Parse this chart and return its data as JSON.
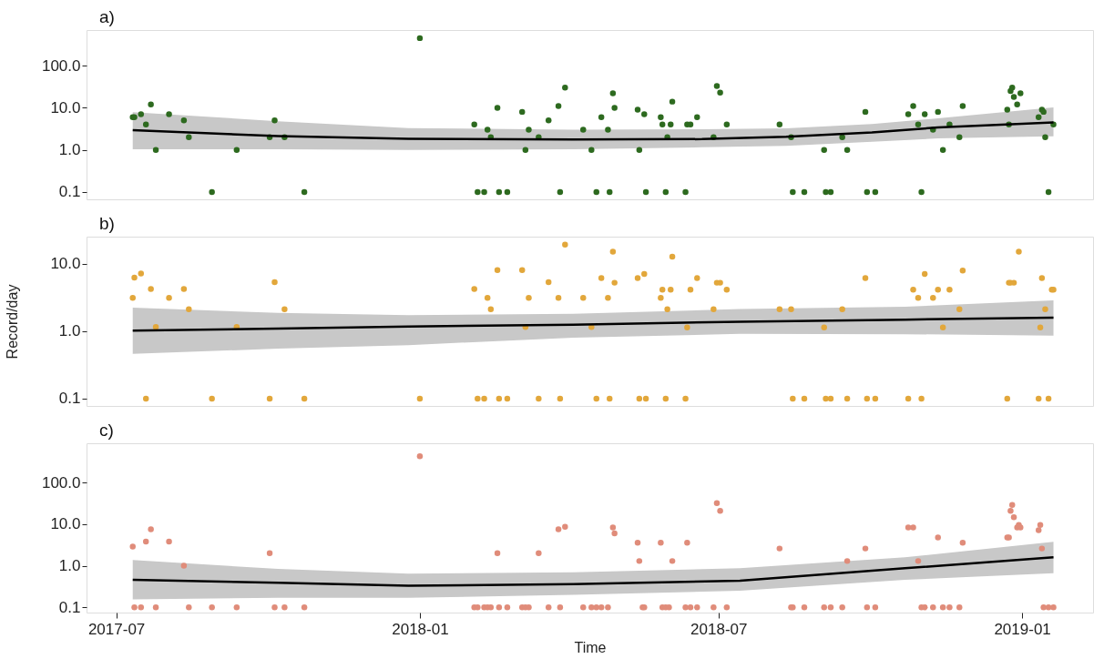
{
  "chart_data": [
    {
      "type": "scatter",
      "title": "a)",
      "xlim": [
        "2017-06-13",
        "2019-02-13"
      ],
      "ylim": [
        0.067,
        700
      ],
      "log": "y",
      "tick_labels": "y",
      "grid": false,
      "legend": false,
      "yticks": [
        {
          "value": 0.1,
          "label": "0.1"
        },
        {
          "value": 1,
          "label": "1.0"
        },
        {
          "value": 10,
          "label": "10.0"
        },
        {
          "value": 100,
          "label": "100.0"
        }
      ],
      "series": [
        {
          "color": "#2d6a1f",
          "x": [
            "2017-07-11",
            "2017-07-12",
            "2017-07-16",
            "2017-07-19",
            "2017-07-22",
            "2017-07-25",
            "2017-08-02",
            "2017-08-11",
            "2017-08-14",
            "2017-08-28",
            "2017-09-12",
            "2017-10-02",
            "2017-10-05",
            "2017-10-11",
            "2017-10-23",
            "2018-01-01",
            "2018-02-03",
            "2018-02-05",
            "2018-02-09",
            "2018-02-11",
            "2018-02-13",
            "2018-02-17",
            "2018-02-18",
            "2018-02-23",
            "2018-03-04",
            "2018-03-06",
            "2018-03-08",
            "2018-03-14",
            "2018-03-20",
            "2018-03-26",
            "2018-03-27",
            "2018-03-30",
            "2018-04-10",
            "2018-04-15",
            "2018-04-18",
            "2018-04-21",
            "2018-04-25",
            "2018-04-26",
            "2018-04-28",
            "2018-04-29",
            "2018-05-13",
            "2018-05-14",
            "2018-05-17",
            "2018-05-18",
            "2018-05-27",
            "2018-05-28",
            "2018-05-30",
            "2018-05-31",
            "2018-06-02",
            "2018-06-03",
            "2018-06-11",
            "2018-06-12",
            "2018-06-14",
            "2018-06-18",
            "2018-06-28",
            "2018-06-30",
            "2018-07-02",
            "2018-07-06",
            "2018-08-07",
            "2018-08-14",
            "2018-08-15",
            "2018-08-22",
            "2018-09-03",
            "2018-09-04",
            "2018-09-07",
            "2018-09-14",
            "2018-09-17",
            "2018-09-28",
            "2018-09-29",
            "2018-10-04",
            "2018-10-24",
            "2018-10-27",
            "2018-10-30",
            "2018-11-01",
            "2018-11-03",
            "2018-11-08",
            "2018-11-11",
            "2018-11-14",
            "2018-11-18",
            "2018-11-24",
            "2018-11-26",
            "2018-12-23",
            "2018-12-24",
            "2018-12-25",
            "2018-12-26",
            "2018-12-27",
            "2018-12-29",
            "2018-12-31",
            "2019-01-11",
            "2019-01-13",
            "2019-01-14",
            "2019-01-15",
            "2019-01-17",
            "2019-01-20"
          ],
          "values": [
            6,
            6,
            7,
            4,
            12,
            1,
            7,
            5,
            2,
            0.1,
            1,
            2,
            5,
            2,
            0.1,
            450,
            4,
            0.1,
            0.1,
            3,
            2,
            10,
            0.1,
            0.1,
            8,
            1,
            3,
            2,
            5,
            11,
            0.1,
            30,
            3,
            1,
            0.1,
            6,
            3,
            0.1,
            22,
            10,
            9,
            1,
            7,
            0.1,
            6,
            4,
            0.1,
            2,
            4,
            14,
            0.1,
            4,
            4,
            6,
            2,
            33,
            23,
            4,
            4,
            2,
            0.1,
            0.1,
            1,
            0.1,
            0.1,
            2,
            1,
            8,
            0.1,
            0.1,
            7,
            11,
            4,
            0.1,
            7,
            3,
            8,
            1,
            4,
            2,
            11,
            9,
            4,
            25,
            30,
            18,
            12,
            22,
            6,
            9,
            8,
            2,
            0.1,
            4
          ]
        },
        {
          "type": "line",
          "color": "#000000",
          "x": [
            "2017-07-11",
            "2017-10-07",
            "2017-12-25",
            "2018-04-04",
            "2018-06-21",
            "2018-08-11",
            "2018-10-02",
            "2018-11-11",
            "2019-01-20"
          ],
          "values": [
            2.94,
            2.13,
            1.84,
            1.77,
            1.8,
            2.05,
            2.6,
            3.4,
            4.5
          ],
          "lower": [
            1.04,
            1.04,
            1.0,
            1.04,
            1.15,
            1.25,
            1.55,
            1.87,
            2.1
          ],
          "upper": [
            7.9,
            4.8,
            3.3,
            3.0,
            3.1,
            3.25,
            4.1,
            5.6,
            10.2
          ]
        }
      ]
    },
    {
      "type": "scatter",
      "title": "b)",
      "ylabel": "Record/day",
      "xlim": [
        "2017-06-13",
        "2019-02-13"
      ],
      "ylim": [
        0.078,
        25
      ],
      "log": "y",
      "tick_labels": "y",
      "grid": false,
      "legend": false,
      "yticks": [
        {
          "value": 0.1,
          "label": "0.1"
        },
        {
          "value": 1,
          "label": "1.0"
        },
        {
          "value": 10,
          "label": "10.0"
        }
      ],
      "series": [
        {
          "color": "#e2a73b",
          "x": [
            "2017-07-11",
            "2017-07-12",
            "2017-07-16",
            "2017-07-19",
            "2017-07-22",
            "2017-07-25",
            "2017-08-02",
            "2017-08-11",
            "2017-08-14",
            "2017-08-28",
            "2017-09-12",
            "2017-10-02",
            "2017-10-05",
            "2017-10-11",
            "2017-10-23",
            "2018-01-01",
            "2018-02-03",
            "2018-02-05",
            "2018-02-09",
            "2018-02-11",
            "2018-02-13",
            "2018-02-17",
            "2018-02-18",
            "2018-02-23",
            "2018-03-04",
            "2018-03-06",
            "2018-03-08",
            "2018-03-14",
            "2018-03-20",
            "2018-03-26",
            "2018-03-27",
            "2018-03-30",
            "2018-04-10",
            "2018-04-15",
            "2018-04-18",
            "2018-04-21",
            "2018-04-25",
            "2018-04-26",
            "2018-04-28",
            "2018-04-29",
            "2018-05-13",
            "2018-05-14",
            "2018-05-17",
            "2018-05-18",
            "2018-05-27",
            "2018-05-28",
            "2018-05-30",
            "2018-05-31",
            "2018-06-02",
            "2018-06-03",
            "2018-06-11",
            "2018-06-12",
            "2018-06-14",
            "2018-06-18",
            "2018-06-28",
            "2018-06-30",
            "2018-07-02",
            "2018-07-06",
            "2018-08-07",
            "2018-08-14",
            "2018-08-15",
            "2018-08-22",
            "2018-09-03",
            "2018-09-04",
            "2018-09-07",
            "2018-09-14",
            "2018-09-17",
            "2018-09-28",
            "2018-09-29",
            "2018-10-04",
            "2018-10-24",
            "2018-10-27",
            "2018-10-30",
            "2018-11-01",
            "2018-11-03",
            "2018-11-08",
            "2018-11-11",
            "2018-11-14",
            "2018-11-18",
            "2018-11-24",
            "2018-11-26",
            "2018-12-23",
            "2018-12-24",
            "2018-12-25",
            "2018-12-27",
            "2018-12-30",
            "2019-01-11",
            "2019-01-12",
            "2019-01-13",
            "2019-01-15",
            "2019-01-17",
            "2019-01-19",
            "2019-01-20"
          ],
          "values": [
            3.1,
            6.2,
            7.1,
            0.1,
            4.2,
            1.15,
            3.1,
            4.2,
            2.1,
            0.1,
            1.15,
            0.1,
            5.3,
            2.1,
            0.1,
            0.1,
            4.2,
            0.1,
            0.1,
            3.1,
            2.1,
            8,
            0.1,
            0.1,
            8,
            1.15,
            3.1,
            0.1,
            5.3,
            3.1,
            0.1,
            19,
            3.1,
            1.15,
            0.1,
            6.1,
            3.1,
            0.1,
            15,
            5.2,
            6.1,
            0.1,
            7,
            0.1,
            3.1,
            4.1,
            0.1,
            2.1,
            4.1,
            12.6,
            0.1,
            1.13,
            4.1,
            6.1,
            2.1,
            5.2,
            5.2,
            4.1,
            2.1,
            2.1,
            0.1,
            0.1,
            1.13,
            0.1,
            0.1,
            2.1,
            0.1,
            6.1,
            0.1,
            0.1,
            0.1,
            4.1,
            3.1,
            0.1,
            7,
            3.1,
            4.1,
            1.13,
            4.1,
            2.1,
            7.9,
            0.1,
            5.2,
            5.2,
            5.2,
            15,
            0.1,
            1.13,
            6.1,
            2.1,
            0.1,
            4.1,
            4.1
          ]
        },
        {
          "type": "line",
          "color": "#000000",
          "x": [
            "2017-07-11",
            "2017-10-07",
            "2017-12-25",
            "2018-04-04",
            "2018-07-14",
            "2018-10-22",
            "2019-01-20"
          ],
          "values": [
            1.02,
            1.09,
            1.17,
            1.24,
            1.38,
            1.48,
            1.58
          ],
          "lower": [
            0.46,
            0.55,
            0.62,
            0.8,
            0.91,
            0.9,
            0.86
          ],
          "upper": [
            2.22,
            1.86,
            1.72,
            1.8,
            2.12,
            2.3,
            2.84
          ]
        }
      ]
    },
    {
      "type": "scatter",
      "title": "c)",
      "xlabel": "Time",
      "xlim": [
        "2017-06-13",
        "2019-02-13"
      ],
      "ylim": [
        0.075,
        880
      ],
      "log": "y",
      "grid": false,
      "legend": false,
      "xticks": [
        {
          "value": "2017-07-01",
          "label": "2017-07"
        },
        {
          "value": "2018-01-01",
          "label": "2018-01"
        },
        {
          "value": "2018-07-01",
          "label": "2018-07"
        },
        {
          "value": "2019-01-01",
          "label": "2019-01"
        }
      ],
      "yticks": [
        {
          "value": 0.1,
          "label": "0.1"
        },
        {
          "value": 1,
          "label": "1.0"
        },
        {
          "value": 10,
          "label": "10.0"
        },
        {
          "value": 100,
          "label": "100.0"
        }
      ],
      "series": [
        {
          "color": "#e08c7a",
          "x": [
            "2017-07-11",
            "2017-07-12",
            "2017-07-16",
            "2017-07-19",
            "2017-07-22",
            "2017-07-25",
            "2017-08-02",
            "2017-08-11",
            "2017-08-14",
            "2017-08-28",
            "2017-09-12",
            "2017-10-02",
            "2017-10-05",
            "2017-10-11",
            "2017-10-23",
            "2018-01-01",
            "2018-02-03",
            "2018-02-05",
            "2018-02-09",
            "2018-02-11",
            "2018-02-13",
            "2018-02-17",
            "2018-02-18",
            "2018-02-23",
            "2018-03-04",
            "2018-03-06",
            "2018-03-08",
            "2018-03-14",
            "2018-03-20",
            "2018-03-26",
            "2018-03-27",
            "2018-03-30",
            "2018-04-10",
            "2018-04-15",
            "2018-04-18",
            "2018-04-21",
            "2018-04-25",
            "2018-04-28",
            "2018-04-29",
            "2018-05-13",
            "2018-05-14",
            "2018-05-16",
            "2018-05-17",
            "2018-05-27",
            "2018-05-28",
            "2018-05-30",
            "2018-06-01",
            "2018-06-03",
            "2018-06-11",
            "2018-06-12",
            "2018-06-14",
            "2018-06-18",
            "2018-06-28",
            "2018-06-30",
            "2018-07-02",
            "2018-07-06",
            "2018-08-07",
            "2018-08-14",
            "2018-08-15",
            "2018-08-22",
            "2018-09-03",
            "2018-09-07",
            "2018-09-14",
            "2018-09-17",
            "2018-09-28",
            "2018-09-29",
            "2018-10-04",
            "2018-10-24",
            "2018-10-27",
            "2018-10-30",
            "2018-11-01",
            "2018-11-03",
            "2018-11-08",
            "2018-11-11",
            "2018-11-14",
            "2018-11-18",
            "2018-11-24",
            "2018-11-26",
            "2018-12-23",
            "2018-12-24",
            "2018-12-25",
            "2018-12-26",
            "2018-12-27",
            "2018-12-29",
            "2018-12-30",
            "2018-12-31",
            "2019-01-11",
            "2019-01-12",
            "2019-01-13",
            "2019-01-14",
            "2019-01-17",
            "2019-01-20"
          ],
          "values": [
            2.9,
            0.1,
            0.1,
            3.8,
            7.5,
            0.1,
            3.8,
            1,
            0.1,
            0.1,
            0.1,
            2,
            0.1,
            0.1,
            0.1,
            430,
            0.1,
            0.1,
            0.1,
            0.1,
            0.1,
            2,
            0.1,
            0.1,
            0.1,
            0.1,
            0.1,
            2,
            0.1,
            7.5,
            0.1,
            8.7,
            0.1,
            0.1,
            0.1,
            0.1,
            0.1,
            8.3,
            6,
            3.6,
            1.3,
            0.1,
            0.1,
            3.6,
            0.1,
            0.1,
            0.1,
            1.3,
            0.1,
            3.6,
            0.1,
            0.1,
            0.1,
            32,
            21,
            0.1,
            2.6,
            0.1,
            0.1,
            0.1,
            0.1,
            0.1,
            0.1,
            1.3,
            2.6,
            0.1,
            0.1,
            8.3,
            8.3,
            1.3,
            0.1,
            0.1,
            0.1,
            4.8,
            0.1,
            0.1,
            0.1,
            3.6,
            4.8,
            4.8,
            21,
            29,
            14.6,
            8.3,
            9.6,
            8.3,
            7.2,
            9.6,
            2.6,
            0.1,
            0.1,
            0.1
          ]
        },
        {
          "type": "line",
          "color": "#000000",
          "x": [
            "2017-07-11",
            "2017-10-07",
            "2017-12-25",
            "2018-04-04",
            "2018-07-14",
            "2018-10-22",
            "2019-01-20"
          ],
          "values": [
            0.46,
            0.39,
            0.33,
            0.36,
            0.44,
            0.87,
            1.6
          ],
          "lower": [
            0.155,
            0.17,
            0.17,
            0.2,
            0.25,
            0.46,
            0.66
          ],
          "upper": [
            1.37,
            0.84,
            0.65,
            0.7,
            0.87,
            1.6,
            3.75
          ]
        }
      ]
    }
  ]
}
